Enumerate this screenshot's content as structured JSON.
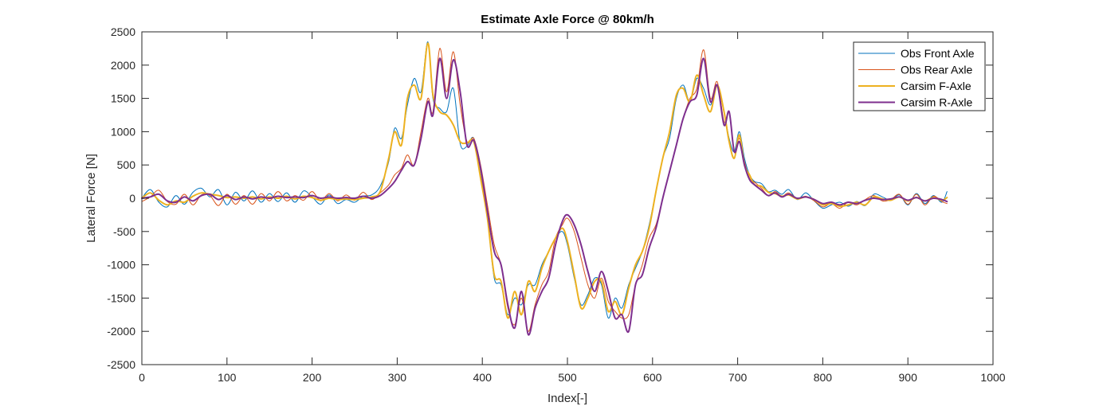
{
  "chart_data": {
    "type": "line",
    "title": "Estimate Axle Force @ 80km/h",
    "xlabel": "Index[-]",
    "ylabel": "Lateral Force [N]",
    "xlim": [
      0,
      1000
    ],
    "ylim": [
      -2500,
      2500
    ],
    "xticks": [
      0,
      100,
      200,
      300,
      400,
      500,
      600,
      700,
      800,
      900,
      1000
    ],
    "yticks": [
      -2500,
      -2000,
      -1500,
      -1000,
      -500,
      0,
      500,
      1000,
      1500,
      2000,
      2500
    ],
    "grid": false,
    "legend_position": "top-right",
    "series": [
      {
        "name": "Obs Front Axle",
        "color": "#0072BD",
        "line_width": 1,
        "x": [
          0,
          10,
          20,
          30,
          40,
          50,
          60,
          70,
          80,
          90,
          100,
          110,
          120,
          130,
          140,
          150,
          160,
          170,
          180,
          190,
          200,
          210,
          220,
          230,
          240,
          250,
          260,
          270,
          280,
          290,
          297,
          305,
          312,
          320,
          328,
          336,
          342,
          350,
          358,
          366,
          374,
          382,
          390,
          398,
          406,
          414,
          422,
          430,
          438,
          446,
          454,
          462,
          470,
          478,
          486,
          494,
          500,
          508,
          516,
          524,
          532,
          540,
          548,
          556,
          564,
          572,
          580,
          588,
          596,
          604,
          612,
          620,
          628,
          636,
          644,
          652,
          660,
          668,
          676,
          684,
          690,
          696,
          702,
          708,
          714,
          720,
          728,
          736,
          744,
          752,
          760,
          770,
          780,
          790,
          800,
          810,
          820,
          830,
          840,
          850,
          860,
          870,
          880,
          890,
          900,
          910,
          920,
          930,
          940,
          946
        ],
        "y": [
          0,
          130,
          -60,
          -130,
          40,
          -90,
          90,
          150,
          20,
          130,
          -100,
          90,
          -40,
          110,
          -60,
          70,
          -50,
          80,
          -60,
          110,
          20,
          -90,
          50,
          -80,
          -20,
          -60,
          30,
          50,
          180,
          550,
          1050,
          900,
          1400,
          1800,
          1600,
          2350,
          1500,
          1350,
          1300,
          1650,
          820,
          780,
          900,
          350,
          -300,
          -1200,
          -1300,
          -1750,
          -1500,
          -1600,
          -1300,
          -1300,
          -1000,
          -800,
          -600,
          -500,
          -700,
          -1200,
          -1600,
          -1450,
          -1200,
          -1300,
          -1800,
          -1500,
          -1650,
          -1300,
          -1050,
          -800,
          -400,
          100,
          600,
          900,
          1500,
          1700,
          1450,
          1800,
          1650,
          1400,
          1700,
          1300,
          900,
          700,
          1000,
          600,
          350,
          250,
          220,
          100,
          120,
          60,
          130,
          -20,
          80,
          -40,
          -150,
          -100,
          -60,
          -120,
          -50,
          -110,
          60,
          20,
          -30,
          50,
          -100,
          70,
          -80,
          40,
          -60,
          100
        ]
      },
      {
        "name": "Obs Rear Axle",
        "color": "#D95319",
        "line_width": 1,
        "x": [
          0,
          10,
          20,
          30,
          40,
          50,
          60,
          70,
          80,
          90,
          100,
          110,
          120,
          130,
          140,
          150,
          160,
          170,
          180,
          190,
          200,
          210,
          220,
          230,
          240,
          250,
          260,
          270,
          280,
          290,
          297,
          305,
          312,
          320,
          328,
          336,
          342,
          350,
          358,
          366,
          374,
          382,
          390,
          398,
          406,
          414,
          422,
          430,
          438,
          446,
          454,
          462,
          470,
          478,
          486,
          494,
          500,
          508,
          516,
          524,
          532,
          540,
          548,
          556,
          564,
          572,
          580,
          588,
          596,
          604,
          612,
          620,
          628,
          636,
          644,
          652,
          660,
          668,
          676,
          684,
          690,
          696,
          702,
          708,
          714,
          720,
          728,
          736,
          744,
          752,
          760,
          770,
          780,
          790,
          800,
          810,
          820,
          830,
          840,
          850,
          860,
          870,
          880,
          890,
          900,
          910,
          920,
          930,
          940,
          946
        ],
        "y": [
          -50,
          20,
          120,
          -50,
          -90,
          60,
          -100,
          50,
          40,
          -110,
          60,
          -90,
          40,
          -90,
          70,
          -40,
          100,
          -40,
          40,
          -30,
          100,
          -40,
          70,
          -40,
          50,
          -30,
          90,
          -20,
          80,
          200,
          350,
          450,
          650,
          500,
          1000,
          1500,
          1300,
          2250,
          1600,
          2200,
          1400,
          850,
          900,
          500,
          -100,
          -700,
          -1000,
          -1650,
          -1900,
          -1500,
          -2000,
          -1600,
          -1300,
          -1100,
          -600,
          -400,
          -300,
          -500,
          -900,
          -1300,
          -1500,
          -1200,
          -1550,
          -1700,
          -1800,
          -1750,
          -1300,
          -1000,
          -600,
          -400,
          0,
          400,
          800,
          1200,
          1500,
          1650,
          2230,
          1500,
          1750,
          1150,
          1300,
          700,
          900,
          550,
          300,
          240,
          150,
          40,
          100,
          30,
          80,
          0,
          30,
          -40,
          -130,
          -80,
          -150,
          -60,
          -100,
          -20,
          40,
          -40,
          -20,
          60,
          -90,
          60,
          -100,
          30,
          -50,
          -80
        ]
      },
      {
        "name": "Carsim F-Axle",
        "color": "#EDB120",
        "line_width": 2,
        "x": [
          0,
          10,
          20,
          30,
          40,
          50,
          60,
          70,
          80,
          90,
          100,
          110,
          120,
          130,
          140,
          150,
          160,
          170,
          180,
          190,
          200,
          210,
          220,
          230,
          240,
          250,
          260,
          270,
          280,
          290,
          297,
          305,
          312,
          320,
          328,
          336,
          342,
          350,
          358,
          366,
          374,
          382,
          390,
          398,
          406,
          414,
          422,
          430,
          438,
          446,
          454,
          462,
          470,
          478,
          486,
          494,
          500,
          508,
          516,
          524,
          532,
          540,
          548,
          556,
          564,
          572,
          580,
          588,
          596,
          604,
          612,
          620,
          628,
          636,
          644,
          652,
          660,
          668,
          676,
          684,
          690,
          696,
          702,
          708,
          714,
          720,
          728,
          736,
          744,
          752,
          760,
          770,
          780,
          790,
          800,
          810,
          820,
          830,
          840,
          850,
          860,
          870,
          880,
          890,
          900,
          910,
          920,
          930,
          940,
          946
        ],
        "y": [
          0,
          80,
          -30,
          -100,
          -40,
          -60,
          30,
          80,
          60,
          40,
          10,
          20,
          0,
          20,
          -10,
          20,
          0,
          30,
          -10,
          30,
          10,
          -30,
          0,
          -20,
          -10,
          -20,
          0,
          20,
          100,
          600,
          1000,
          800,
          1500,
          1700,
          1500,
          2330,
          1550,
          1300,
          1250,
          1100,
          850,
          830,
          850,
          300,
          -300,
          -1150,
          -1250,
          -1800,
          -1400,
          -1750,
          -1250,
          -1400,
          -1050,
          -800,
          -600,
          -450,
          -650,
          -1150,
          -1650,
          -1500,
          -1250,
          -1250,
          -1700,
          -1550,
          -1750,
          -1350,
          -1000,
          -800,
          -450,
          100,
          600,
          1000,
          1550,
          1650,
          1450,
          1850,
          1550,
          1300,
          1700,
          1300,
          850,
          600,
          950,
          500,
          350,
          200,
          180,
          90,
          70,
          30,
          50,
          -10,
          20,
          -20,
          -100,
          -80,
          -120,
          -100,
          -60,
          -100,
          20,
          -10,
          -30,
          20,
          -40,
          10,
          -40,
          10,
          -30,
          10
        ]
      },
      {
        "name": "Carsim R-Axle",
        "color": "#7E2F8E",
        "line_width": 2,
        "x": [
          0,
          10,
          20,
          30,
          40,
          50,
          60,
          70,
          80,
          90,
          100,
          110,
          120,
          130,
          140,
          150,
          160,
          170,
          180,
          190,
          200,
          210,
          220,
          230,
          240,
          250,
          260,
          270,
          280,
          290,
          297,
          305,
          312,
          320,
          328,
          336,
          342,
          350,
          358,
          366,
          374,
          382,
          390,
          398,
          406,
          414,
          422,
          430,
          438,
          446,
          454,
          462,
          470,
          478,
          486,
          494,
          500,
          508,
          516,
          524,
          532,
          540,
          548,
          556,
          564,
          572,
          580,
          588,
          596,
          604,
          612,
          620,
          628,
          636,
          644,
          652,
          660,
          668,
          676,
          684,
          690,
          696,
          702,
          708,
          714,
          720,
          728,
          736,
          744,
          752,
          760,
          770,
          780,
          790,
          800,
          810,
          820,
          830,
          840,
          850,
          860,
          870,
          880,
          890,
          900,
          910,
          920,
          930,
          940,
          946
        ],
        "y": [
          0,
          20,
          60,
          -40,
          -60,
          20,
          -40,
          40,
          60,
          -20,
          40,
          -20,
          20,
          -10,
          20,
          0,
          30,
          10,
          20,
          10,
          40,
          0,
          20,
          0,
          10,
          0,
          30,
          0,
          40,
          150,
          250,
          420,
          550,
          500,
          900,
          1450,
          1250,
          2100,
          1500,
          2080,
          1600,
          800,
          870,
          450,
          -200,
          -800,
          -1000,
          -1600,
          -1950,
          -1400,
          -2050,
          -1650,
          -1400,
          -1200,
          -700,
          -350,
          -250,
          -400,
          -700,
          -1100,
          -1400,
          -1100,
          -1400,
          -1800,
          -1750,
          -2000,
          -1300,
          -1150,
          -750,
          -450,
          0,
          400,
          800,
          1200,
          1450,
          1550,
          2100,
          1450,
          1700,
          1100,
          1300,
          700,
          850,
          500,
          280,
          200,
          120,
          40,
          80,
          20,
          60,
          0,
          20,
          -20,
          -80,
          -60,
          -100,
          -60,
          -80,
          -30,
          0,
          -20,
          -10,
          20,
          -30,
          10,
          -40,
          0,
          -20,
          -50
        ]
      }
    ]
  }
}
